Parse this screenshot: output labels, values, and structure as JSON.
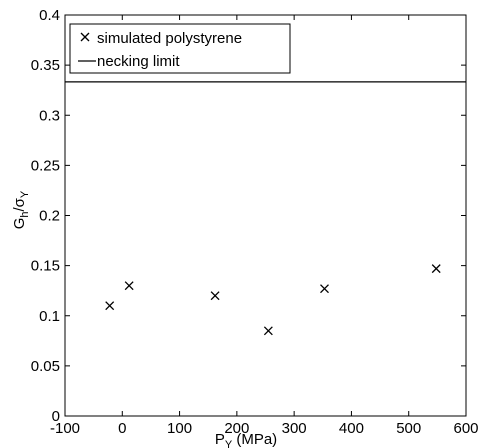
{
  "chart_data": {
    "type": "scatter",
    "xlabel": "P",
    "xlabel_sub": "Y",
    "xlabel_unit": "(MPa)",
    "ylabel": "G",
    "ylabel_sub_h": "h",
    "ylabel_sigma": "/σ",
    "ylabel_sub_Y": "Y",
    "xlim": [
      -100,
      600
    ],
    "ylim": [
      0,
      0.4
    ],
    "xticks": [
      -100,
      0,
      100,
      200,
      300,
      400,
      500,
      600
    ],
    "xtick_labels": [
      "-100",
      "0",
      "100",
      "200",
      "300",
      "400",
      "500",
      "600"
    ],
    "yticks": [
      0,
      0.05,
      0.1,
      0.15,
      0.2,
      0.25,
      0.3,
      0.35,
      0.4
    ],
    "ytick_labels": [
      "0",
      "0.05",
      "0.1",
      "0.15",
      "0.2",
      "0.25",
      "0.3",
      "0.35",
      "0.4"
    ],
    "grid": false,
    "legend_position": "top-left",
    "series": [
      {
        "name": "simulated polystyrene",
        "marker": "x",
        "x": [
          -22,
          12,
          162,
          255,
          353,
          548
        ],
        "y": [
          0.11,
          0.13,
          0.12,
          0.085,
          0.127,
          0.147
        ]
      },
      {
        "name": "necking limit",
        "style": "line",
        "x": [
          -100,
          600
        ],
        "y": [
          0.3333,
          0.3333
        ]
      }
    ]
  }
}
